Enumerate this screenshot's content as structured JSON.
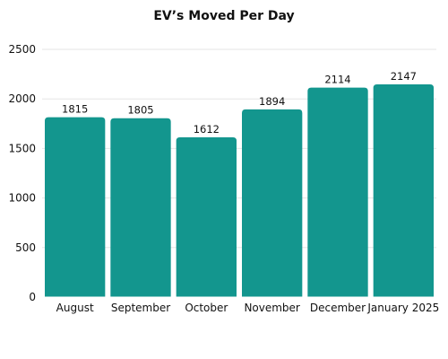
{
  "chart_data": {
    "type": "bar",
    "title": "EV’s Moved Per Day",
    "xlabel": "",
    "ylabel": "",
    "categories": [
      "August",
      "September",
      "October",
      "November",
      "December",
      "January 2025"
    ],
    "values": [
      1815,
      1805,
      1612,
      1894,
      2114,
      2147
    ],
    "ylim": [
      0,
      2500
    ],
    "yticks": [
      0,
      500,
      1000,
      1500,
      2000,
      2500
    ],
    "grid": true,
    "legend": "none",
    "bar_color": "#13968e"
  }
}
